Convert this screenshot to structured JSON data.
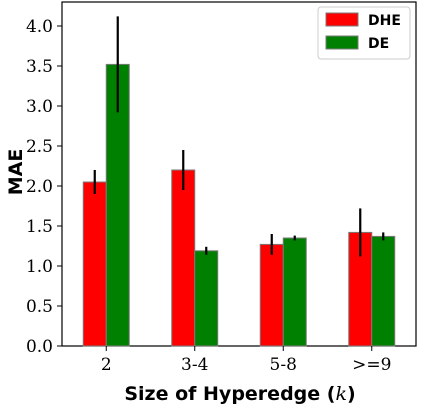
{
  "chart_data": {
    "type": "bar",
    "categories": [
      "2",
      "3-4",
      "5-8",
      ">=9"
    ],
    "series": [
      {
        "name": "DHE",
        "color": "#ff0000",
        "values": [
          2.05,
          2.2,
          1.27,
          1.42
        ],
        "errors": [
          0.15,
          0.25,
          0.13,
          0.3
        ]
      },
      {
        "name": "DE",
        "color": "#008000",
        "values": [
          3.52,
          1.19,
          1.35,
          1.37
        ],
        "errors": [
          0.6,
          0.05,
          0.03,
          0.05
        ]
      }
    ],
    "xlabel_prefix": "Size of Hyperedge (",
    "xlabel_var": "k",
    "xlabel_suffix": ")",
    "ylabel": "MAE",
    "ylim": [
      0,
      4.3
    ],
    "yticks": [
      "0.0",
      "0.5",
      "1.0",
      "1.5",
      "2.0",
      "2.5",
      "3.0",
      "3.5",
      "4.0"
    ],
    "grid": false,
    "legend_position": "top-right"
  }
}
